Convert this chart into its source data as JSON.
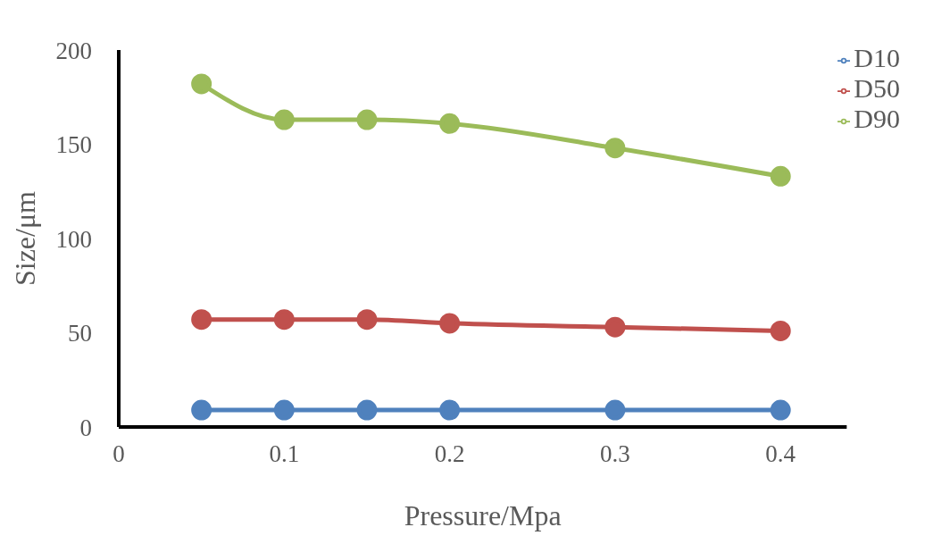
{
  "chart_data": {
    "type": "line",
    "xlabel": "Pressure/Mpa",
    "ylabel": "Size/μm",
    "x": [
      0.05,
      0.1,
      0.15,
      0.2,
      0.3,
      0.4
    ],
    "series": [
      {
        "name": "D10",
        "color": "#4f81bd",
        "values": [
          9,
          9,
          9,
          9,
          9,
          9
        ]
      },
      {
        "name": "D50",
        "color": "#c0504d",
        "values": [
          57,
          57,
          57,
          55,
          53,
          51
        ]
      },
      {
        "name": "D90",
        "color": "#9bbb59",
        "values": [
          182,
          163,
          163,
          161,
          148,
          133
        ]
      }
    ],
    "xlim": [
      0,
      0.44
    ],
    "xticks": [
      0,
      0.1,
      0.2,
      0.3,
      0.4
    ],
    "ylim": [
      0,
      200
    ],
    "yticks": [
      0,
      50,
      100,
      150,
      200
    ],
    "grid": false,
    "legend": "top right",
    "marker": "circle",
    "line_style": "solid"
  }
}
